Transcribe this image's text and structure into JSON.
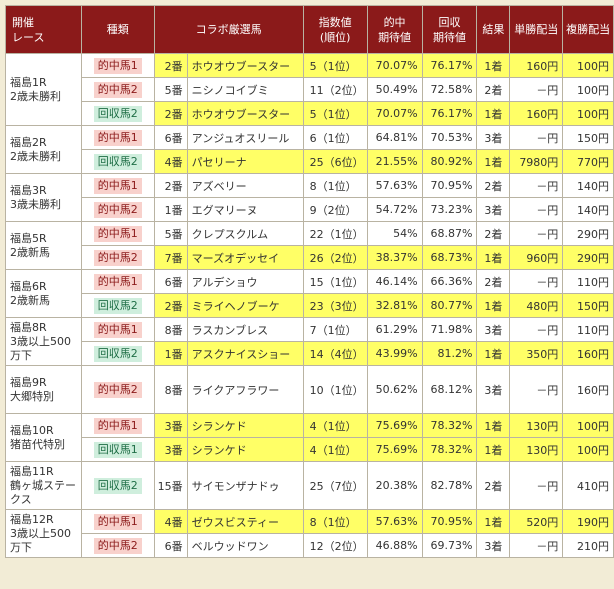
{
  "headers": [
    "開催\nレース",
    "種類",
    "コラボ厳選馬",
    "指数値\n(順位)",
    "的中\n期待値",
    "回収\n期待値",
    "結果",
    "単勝配当",
    "複勝配当"
  ],
  "races": [
    {
      "race": "福島1R\n2歳未勝利",
      "rows": [
        {
          "type": "的中馬1",
          "kind": "hit",
          "hl": true,
          "no": "2番",
          "horse": "ホウオウブースター",
          "index": "5（1位）",
          "hitExp": "70.07%",
          "recExp": "76.17%",
          "result": "1着",
          "win": "160円",
          "place": "100円"
        },
        {
          "type": "的中馬2",
          "kind": "hit",
          "hl": false,
          "no": "5番",
          "horse": "ニシノコイブミ",
          "index": "11（2位）",
          "hitExp": "50.49%",
          "recExp": "72.58%",
          "result": "2着",
          "win": "－円",
          "place": "100円"
        },
        {
          "type": "回収馬2",
          "kind": "rec",
          "hl": true,
          "no": "2番",
          "horse": "ホウオウブースター",
          "index": "5（1位）",
          "hitExp": "70.07%",
          "recExp": "76.17%",
          "result": "1着",
          "win": "160円",
          "place": "100円"
        }
      ]
    },
    {
      "race": "福島2R\n2歳未勝利",
      "rows": [
        {
          "type": "的中馬1",
          "kind": "hit",
          "hl": false,
          "no": "6番",
          "horse": "アンジュオスリール",
          "index": "6（1位）",
          "hitExp": "64.81%",
          "recExp": "70.53%",
          "result": "3着",
          "win": "－円",
          "place": "150円"
        },
        {
          "type": "回収馬2",
          "kind": "rec",
          "hl": true,
          "no": "4番",
          "horse": "パセリーナ",
          "index": "25（6位）",
          "hitExp": "21.55%",
          "recExp": "80.92%",
          "result": "1着",
          "win": "7980円",
          "place": "770円"
        }
      ]
    },
    {
      "race": "福島3R\n3歳未勝利",
      "rows": [
        {
          "type": "的中馬1",
          "kind": "hit",
          "hl": false,
          "no": "2番",
          "horse": "アズベリー",
          "index": "8（1位）",
          "hitExp": "57.63%",
          "recExp": "70.95%",
          "result": "2着",
          "win": "－円",
          "place": "140円"
        },
        {
          "type": "的中馬2",
          "kind": "hit",
          "hl": false,
          "no": "1番",
          "horse": "エグマリーヌ",
          "index": "9（2位）",
          "hitExp": "54.72%",
          "recExp": "73.23%",
          "result": "3着",
          "win": "－円",
          "place": "140円"
        }
      ]
    },
    {
      "race": "福島5R\n2歳新馬",
      "rows": [
        {
          "type": "的中馬1",
          "kind": "hit",
          "hl": false,
          "no": "5番",
          "horse": "クレプスクルム",
          "index": "22（1位）",
          "hitExp": "54%",
          "recExp": "68.87%",
          "result": "2着",
          "win": "－円",
          "place": "290円"
        },
        {
          "type": "的中馬2",
          "kind": "hit",
          "hl": true,
          "no": "7番",
          "horse": "マーズオデッセイ",
          "index": "26（2位）",
          "hitExp": "38.37%",
          "recExp": "68.73%",
          "result": "1着",
          "win": "960円",
          "place": "290円"
        }
      ]
    },
    {
      "race": "福島6R\n2歳新馬",
      "rows": [
        {
          "type": "的中馬1",
          "kind": "hit",
          "hl": false,
          "no": "6番",
          "horse": "アルデショウ",
          "index": "15（1位）",
          "hitExp": "46.14%",
          "recExp": "66.36%",
          "result": "2着",
          "win": "－円",
          "place": "110円"
        },
        {
          "type": "回収馬2",
          "kind": "rec",
          "hl": true,
          "no": "2番",
          "horse": "ミライヘノブーケ",
          "index": "23（3位）",
          "hitExp": "32.81%",
          "recExp": "80.77%",
          "result": "1着",
          "win": "480円",
          "place": "150円"
        }
      ]
    },
    {
      "race": "福島8R\n3歳以上500\n万下",
      "rows": [
        {
          "type": "的中馬1",
          "kind": "hit",
          "hl": false,
          "no": "8番",
          "horse": "ラスカンブレス",
          "index": "7（1位）",
          "hitExp": "61.29%",
          "recExp": "71.98%",
          "result": "3着",
          "win": "－円",
          "place": "110円"
        },
        {
          "type": "回収馬2",
          "kind": "rec",
          "hl": true,
          "no": "1番",
          "horse": "アスクナイスショー",
          "index": "14（4位）",
          "hitExp": "43.99%",
          "recExp": "81.2%",
          "result": "1着",
          "win": "350円",
          "place": "160円"
        }
      ]
    },
    {
      "race": "福島9R\n大郷特別",
      "tall": true,
      "rows": [
        {
          "type": "的中馬2",
          "kind": "hit",
          "hl": false,
          "no": "8番",
          "horse": "ライクアフラワー",
          "index": "10（1位）",
          "hitExp": "50.62%",
          "recExp": "68.12%",
          "result": "3着",
          "win": "－円",
          "place": "160円"
        }
      ]
    },
    {
      "race": "福島10R\n猪苗代特別",
      "rows": [
        {
          "type": "的中馬1",
          "kind": "hit",
          "hl": true,
          "no": "3番",
          "horse": "シランケド",
          "index": "4（1位）",
          "hitExp": "75.69%",
          "recExp": "78.32%",
          "result": "1着",
          "win": "130円",
          "place": "100円"
        },
        {
          "type": "回収馬1",
          "kind": "rec",
          "hl": true,
          "no": "3番",
          "horse": "シランケド",
          "index": "4（1位）",
          "hitExp": "75.69%",
          "recExp": "78.32%",
          "result": "1着",
          "win": "130円",
          "place": "100円"
        }
      ]
    },
    {
      "race": "福島11R\n鶴ヶ城ステー\nクス",
      "tall": true,
      "rows": [
        {
          "type": "回収馬2",
          "kind": "rec",
          "hl": false,
          "no": "15番",
          "horse": "サイモンザナドゥ",
          "index": "25（7位）",
          "hitExp": "20.38%",
          "recExp": "82.78%",
          "result": "2着",
          "win": "－円",
          "place": "410円"
        }
      ]
    },
    {
      "race": "福島12R\n3歳以上500\n万下",
      "rows": [
        {
          "type": "的中馬1",
          "kind": "hit",
          "hl": true,
          "no": "4番",
          "horse": "ゼウスビスティー",
          "index": "8（1位）",
          "hitExp": "57.63%",
          "recExp": "70.95%",
          "result": "1着",
          "win": "520円",
          "place": "190円"
        },
        {
          "type": "的中馬2",
          "kind": "hit",
          "hl": false,
          "no": "6番",
          "horse": "ベルウッドワン",
          "index": "12（2位）",
          "hitExp": "46.88%",
          "recExp": "69.73%",
          "result": "3着",
          "win": "－円",
          "place": "210円"
        }
      ]
    }
  ]
}
